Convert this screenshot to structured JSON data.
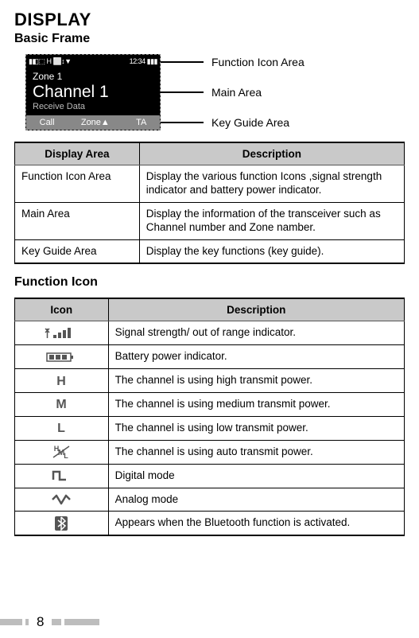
{
  "headings": {
    "title": "DISPLAY",
    "basic_frame": "Basic Frame",
    "function_icon": "Function Icon"
  },
  "lcd": {
    "topbar_left": "▮◧⬚ H ⬜↕▼",
    "topbar_right": "12:34 ▮▮▮",
    "zone": "Zone 1",
    "channel": "Channel 1",
    "receive": "Receive Data",
    "key_left": "Call",
    "key_mid": "Zone▲",
    "key_right": "TA"
  },
  "callouts": {
    "top": "Function Icon Area",
    "mid": "Main Area",
    "bot": "Key Guide Area"
  },
  "area_table": {
    "headers": [
      "Display Area",
      "Description"
    ],
    "rows": [
      [
        "Function Icon Area",
        "Display the various function Icons ,signal strength indicator and battery power indicator."
      ],
      [
        "Main Area",
        "Display the information of the transceiver such as Channel number and Zone namber."
      ],
      [
        "Key Guide Area",
        "Display the key functions (key guide)."
      ]
    ],
    "col1_width": "32%"
  },
  "icon_table": {
    "headers": [
      "Icon",
      "Description"
    ],
    "rows": [
      {
        "icon": "signal",
        "desc": "Signal strength/ out of range indicator."
      },
      {
        "icon": "battery",
        "desc": "Battery power indicator."
      },
      {
        "icon": "H",
        "desc": "The channel is using high transmit power."
      },
      {
        "icon": "M",
        "desc": "The channel is using medium transmit power."
      },
      {
        "icon": "L",
        "desc": "The channel is using low transmit power."
      },
      {
        "icon": "auto",
        "desc": "The channel is using auto transmit power."
      },
      {
        "icon": "digital",
        "desc": "Digital mode"
      },
      {
        "icon": "analog",
        "desc": "Analog mode"
      },
      {
        "icon": "bluetooth",
        "desc": "Appears when the Bluetooth function is activated."
      }
    ],
    "col1_width": "24%"
  },
  "page_number": "8",
  "colors": {
    "header_bg": "#c9c9c9",
    "border": "#000000",
    "lcd_bg": "#000000",
    "lcd_fg": "#ffffff",
    "keyguide_bg": "#888888",
    "footer_bar": "#bdbdbd"
  }
}
